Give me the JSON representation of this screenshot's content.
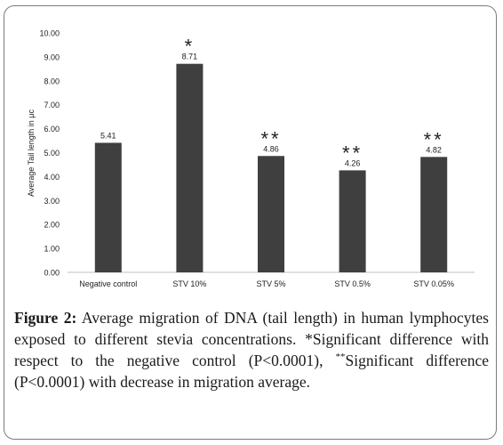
{
  "chart_data": {
    "type": "bar",
    "ylabel": "Average Tail length in μc",
    "ylim": [
      0,
      10
    ],
    "ytick_step": 1,
    "ytick_labels": [
      "0.00",
      "1.00",
      "2.00",
      "3.00",
      "4.00",
      "5.00",
      "6.00",
      "7.00",
      "8.00",
      "9.00",
      "10.00"
    ],
    "grid": false,
    "categories": [
      "Negative control",
      "STV 10%",
      "STV 5%",
      "STV 0.5%",
      "STV 0.05%"
    ],
    "values": [
      5.41,
      8.71,
      4.86,
      4.26,
      4.82
    ],
    "value_labels": [
      "5.41",
      "8.71",
      "4.86",
      "4.26",
      "4.82"
    ],
    "significance": [
      "",
      "*",
      "**",
      "**",
      "**"
    ],
    "bar_color": "#3f3f3f"
  },
  "caption": {
    "label": "Figure 2:",
    "text": "Average migration of DNA (tail length) in human lymphocytes exposed to different stevia concentrations. *Significant difference with respect to the negative control (P<0.0001),",
    "superscript": "**",
    "text2": "Significant difference (P<0.0001) with decrease in migration average."
  }
}
